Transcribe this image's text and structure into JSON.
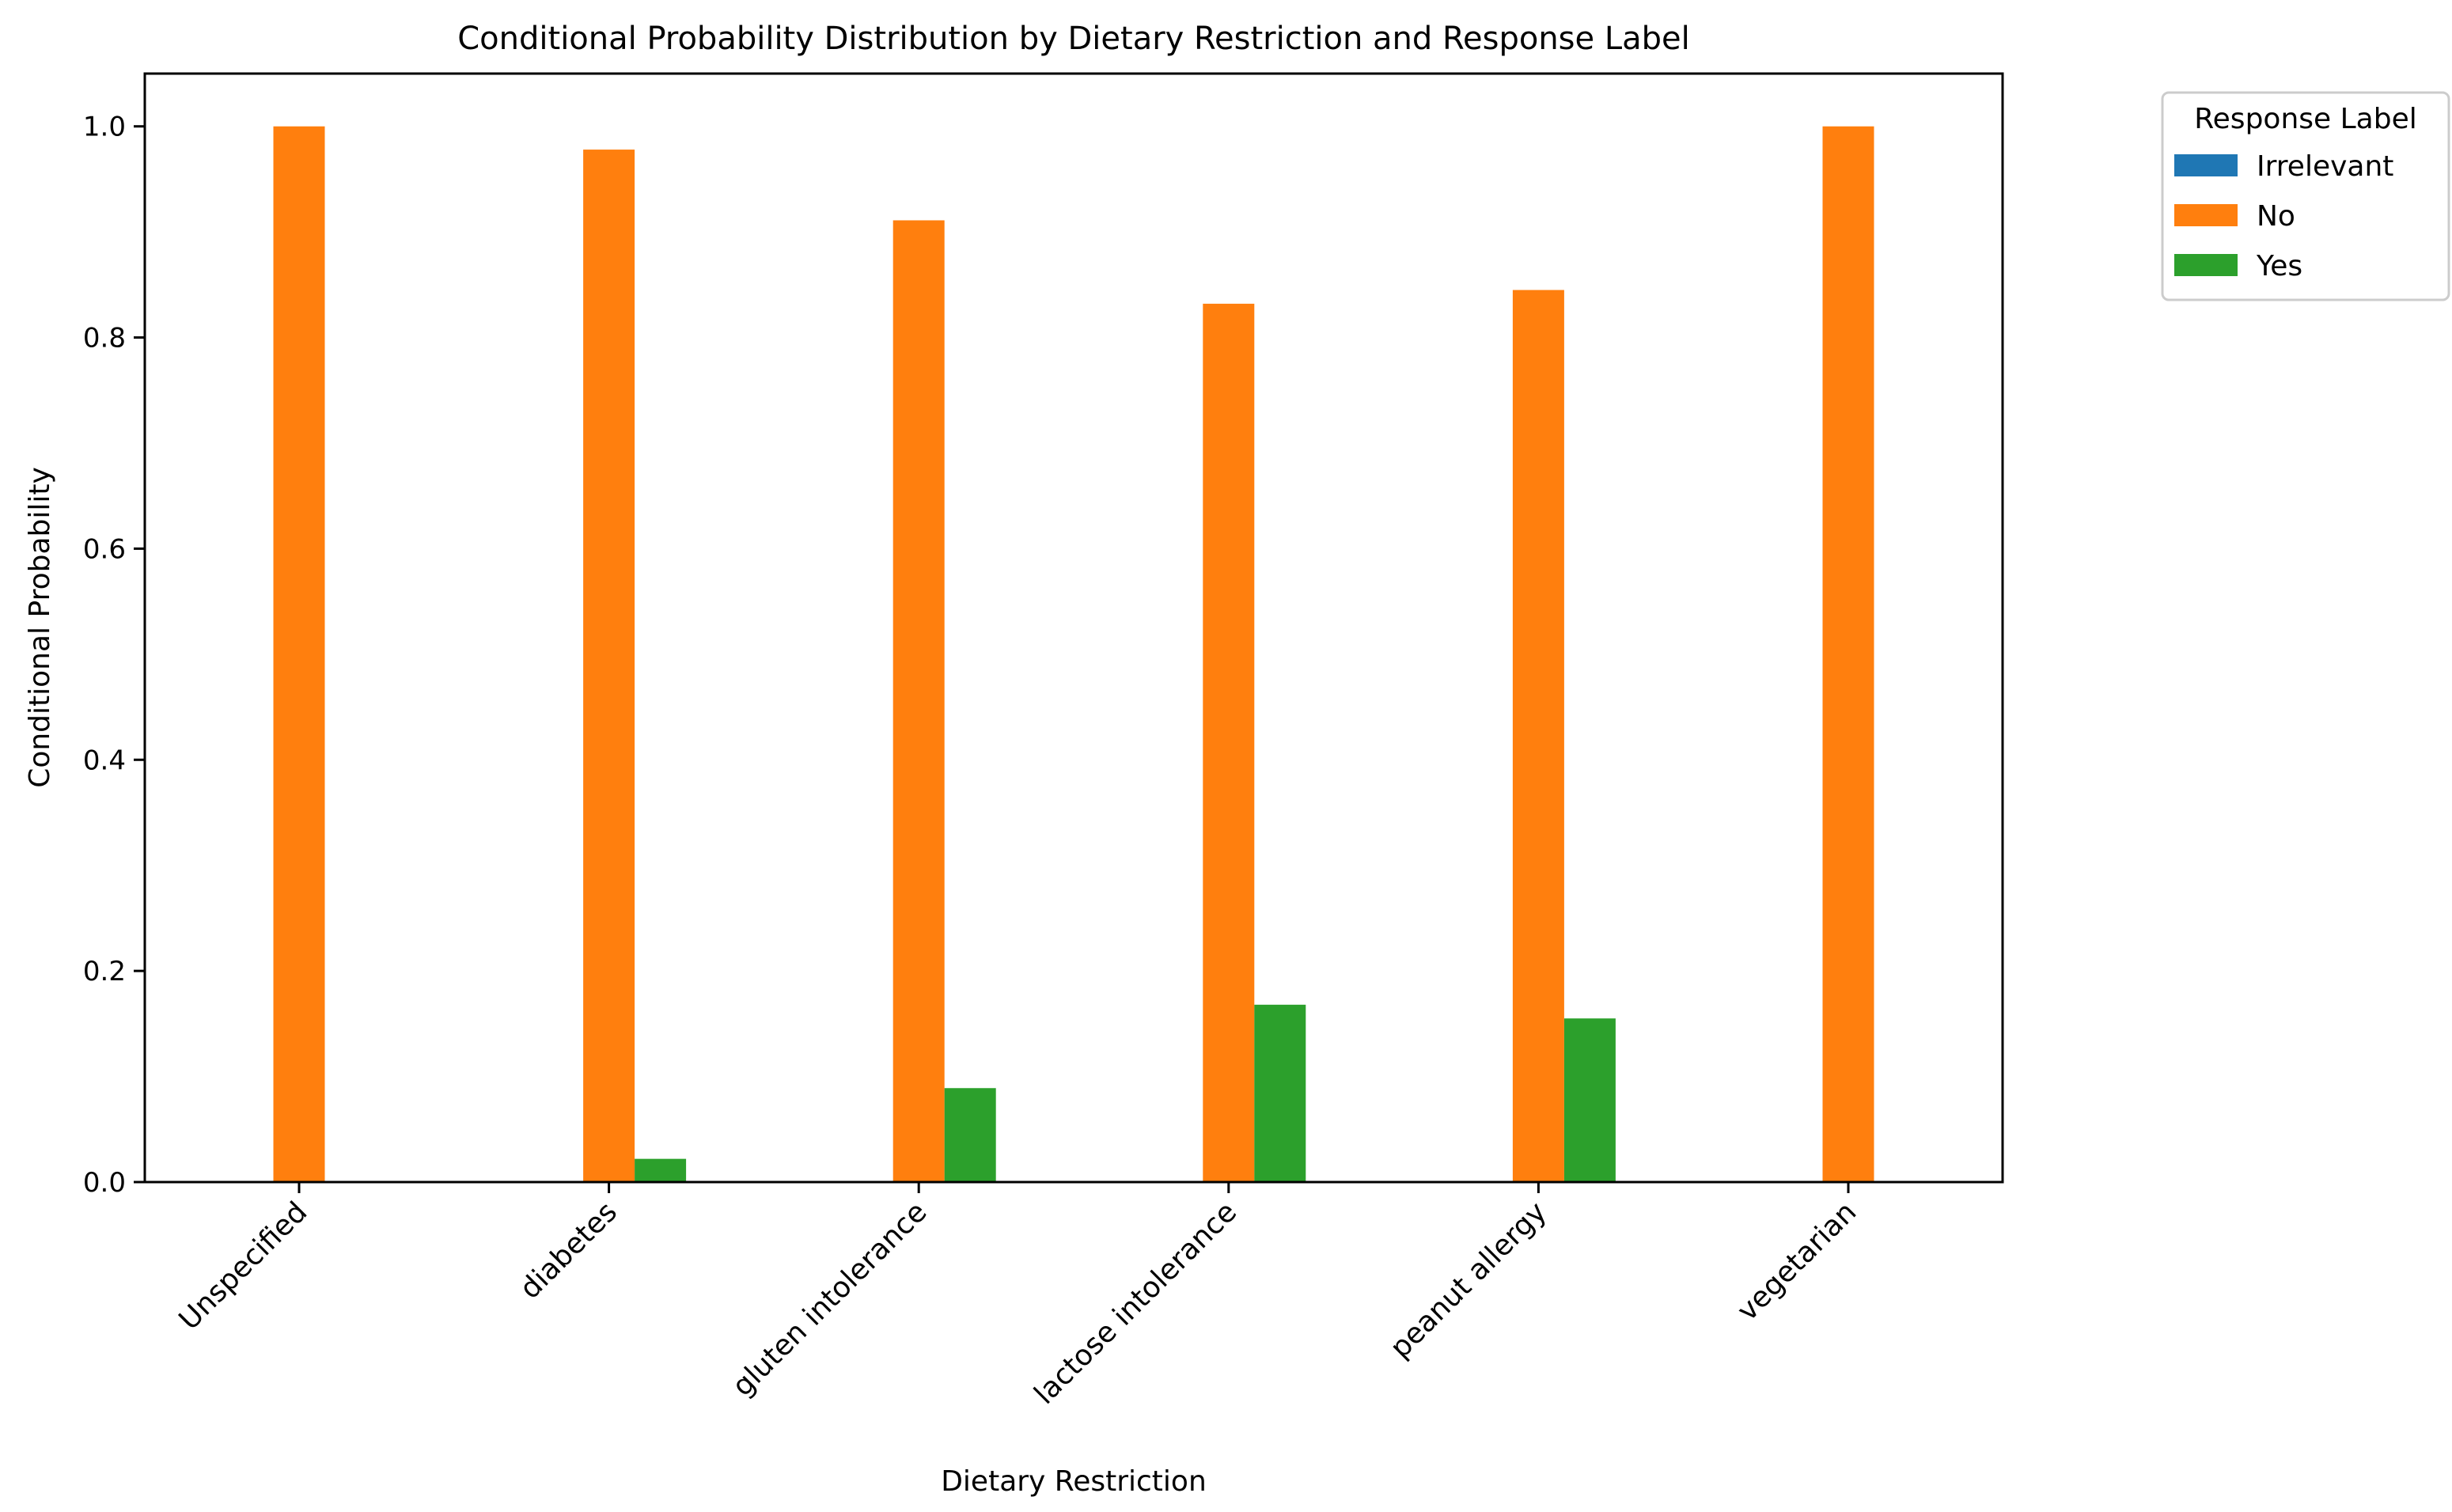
{
  "chart_data": {
    "type": "bar",
    "title": "Conditional Probability Distribution by Dietary Restriction and Response Label",
    "xlabel": "Dietary Restriction",
    "ylabel": "Conditional Probability",
    "categories": [
      "Unspecified",
      "diabetes",
      "gluten intolerance",
      "lactose intolerance",
      "peanut allergy",
      "vegetarian"
    ],
    "ylim": [
      0,
      1.05
    ],
    "yticks": [
      "0.0",
      "0.2",
      "0.4",
      "0.6",
      "0.8",
      "1.0"
    ],
    "grid": false,
    "legend": {
      "title": "Response Label",
      "placement": "outside top-right"
    },
    "series": [
      {
        "name": "Irrelevant",
        "color": "#1f77b4",
        "values": [
          0,
          0,
          0,
          0,
          0,
          0
        ]
      },
      {
        "name": "No",
        "color": "#ff7f0e",
        "values": [
          1.0,
          0.978,
          0.911,
          0.832,
          0.845,
          1.0
        ]
      },
      {
        "name": "Yes",
        "color": "#2ca02c",
        "values": [
          0,
          0.022,
          0.089,
          0.168,
          0.155,
          0
        ]
      }
    ]
  }
}
